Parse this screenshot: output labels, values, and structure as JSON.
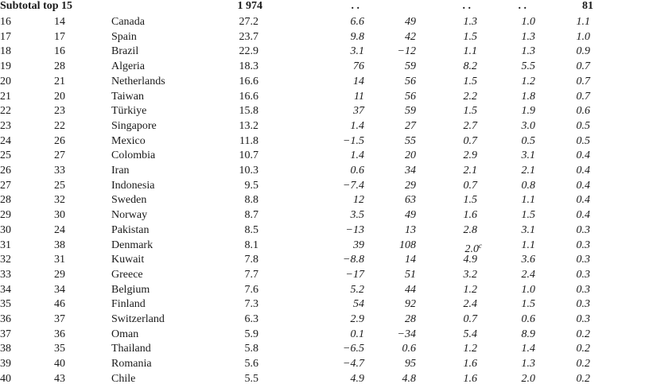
{
  "table": {
    "header": [
      "Subtotal top 15",
      "1 974",
      ". .",
      ". .",
      ". .",
      "81"
    ],
    "rows": [
      [
        "16",
        "14",
        "Canada",
        "27.2",
        "6.6",
        "49",
        "1.3",
        "1.0",
        "1.1"
      ],
      [
        "17",
        "17",
        "Spain",
        "23.7",
        "9.8",
        "42",
        "1.5",
        "1.3",
        "1.0"
      ],
      [
        "18",
        "16",
        "Brazil",
        "22.9",
        "3.1",
        "−12",
        "1.1",
        "1.3",
        "0.9"
      ],
      [
        "19",
        "28",
        "Algeria",
        "18.3",
        "76",
        "59",
        "8.2",
        "5.5",
        "0.7"
      ],
      [
        "20",
        "21",
        "Netherlands",
        "16.6",
        "14",
        "56",
        "1.5",
        "1.2",
        "0.7"
      ],
      [
        "21",
        "20",
        "Taiwan",
        "16.6",
        "11",
        "56",
        "2.2",
        "1.8",
        "0.7"
      ],
      [
        "22",
        "23",
        "Türkiye",
        "15.8",
        "37",
        "59",
        "1.5",
        "1.9",
        "0.6"
      ],
      [
        "23",
        "22",
        "Singapore",
        "13.2",
        "1.4",
        "27",
        "2.7",
        "3.0",
        "0.5"
      ],
      [
        "24",
        "26",
        "Mexico",
        "11.8",
        "−1.5",
        "55",
        "0.7",
        "0.5",
        "0.5"
      ],
      [
        "25",
        "27",
        "Colombia",
        "10.7",
        "1.4",
        "20",
        "2.9",
        "3.1",
        "0.4"
      ],
      [
        "26",
        "33",
        "Iran",
        "10.3",
        "0.6",
        "34",
        "2.1",
        "2.1",
        "0.4"
      ],
      [
        "27",
        "25",
        "Indonesia",
        "9.5",
        "−7.4",
        "29",
        "0.7",
        "0.8",
        "0.4"
      ],
      [
        "28",
        "32",
        "Sweden",
        "8.8",
        "12",
        "63",
        "1.5",
        "1.1",
        "0.4"
      ],
      [
        "29",
        "30",
        "Norway",
        "8.7",
        "3.5",
        "49",
        "1.6",
        "1.5",
        "0.4"
      ],
      [
        "30",
        "24",
        "Pakistan",
        "8.5",
        "−13",
        "13",
        "2.8",
        "3.1",
        "0.3"
      ],
      [
        "31",
        "38",
        "Denmark",
        "8.1",
        "39",
        "108",
        {
          "text": "2.0",
          "sup": "c"
        },
        "1.1",
        "0.3"
      ],
      [
        "32",
        "31",
        "Kuwait",
        "7.8",
        "−8.8",
        "14",
        "4.9",
        "3.6",
        "0.3"
      ],
      [
        "33",
        "29",
        "Greece",
        "7.7",
        "−17",
        "51",
        "3.2",
        "2.4",
        "0.3"
      ],
      [
        "34",
        "34",
        "Belgium",
        "7.6",
        "5.2",
        "44",
        "1.2",
        "1.0",
        "0.3"
      ],
      [
        "35",
        "46",
        "Finland",
        "7.3",
        "54",
        "92",
        "2.4",
        "1.5",
        "0.3"
      ],
      [
        "36",
        "37",
        "Switzerland",
        "6.3",
        "2.9",
        "28",
        "0.7",
        "0.6",
        "0.3"
      ],
      [
        "37",
        "36",
        "Oman",
        "5.9",
        "0.1",
        "−34",
        "5.4",
        "8.9",
        "0.2"
      ],
      [
        "38",
        "35",
        "Thailand",
        "5.8",
        "−6.5",
        "0.6",
        "1.2",
        "1.4",
        "0.2"
      ],
      [
        "39",
        "40",
        "Romania",
        "5.6",
        "−4.7",
        "95",
        "1.6",
        "1.3",
        "0.2"
      ],
      [
        "40",
        "43",
        "Chile",
        "5.5",
        "4.9",
        "4.8",
        "1.6",
        "2.0",
        "0.2"
      ]
    ]
  }
}
